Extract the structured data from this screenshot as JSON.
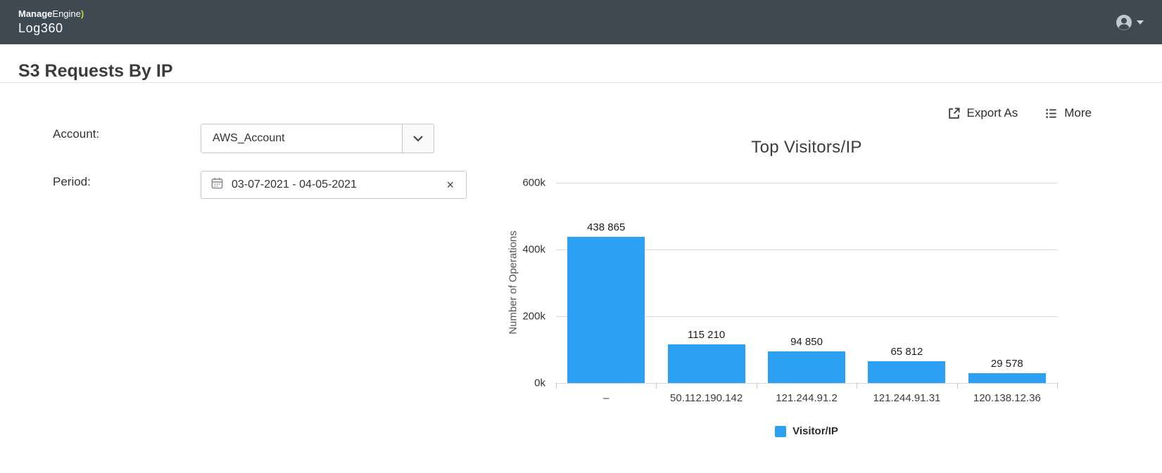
{
  "topbar": {
    "brand_bold": "Manage",
    "brand_rest": "Engine",
    "brand_swoosh": ")",
    "product": "Log360"
  },
  "page": {
    "title": "S3 Requests By IP"
  },
  "filters": {
    "account": {
      "label": "Account:",
      "value": "AWS_Account"
    },
    "period": {
      "label": "Period:",
      "value": "03-07-2021 - 04-05-2021",
      "clear": "×"
    }
  },
  "toolbar": {
    "export_label": "Export As",
    "more_label": "More"
  },
  "chart_data": {
    "type": "bar",
    "title": "Top Visitors/IP",
    "xlabel": "",
    "ylabel": "Number of Operations",
    "categories": [
      "–",
      "50.112.190.142",
      "121.244.91.2",
      "121.244.91.31",
      "120.138.12.36"
    ],
    "values": [
      438865,
      115210,
      94850,
      65812,
      29578
    ],
    "value_labels": [
      "438 865",
      "115 210",
      "94 850",
      "65 812",
      "29 578"
    ],
    "ylim": [
      0,
      600000
    ],
    "yticks": [
      {
        "value": 600000,
        "label": "600k"
      },
      {
        "value": 400000,
        "label": "400k"
      },
      {
        "value": 200000,
        "label": "200k"
      },
      {
        "value": 0,
        "label": "0k"
      }
    ],
    "grid": true,
    "bar_color": "#2ca0f2",
    "legend_position": "bottom",
    "legend": [
      {
        "label": "Visitor/IP",
        "color": "#2ca0f2"
      }
    ]
  }
}
